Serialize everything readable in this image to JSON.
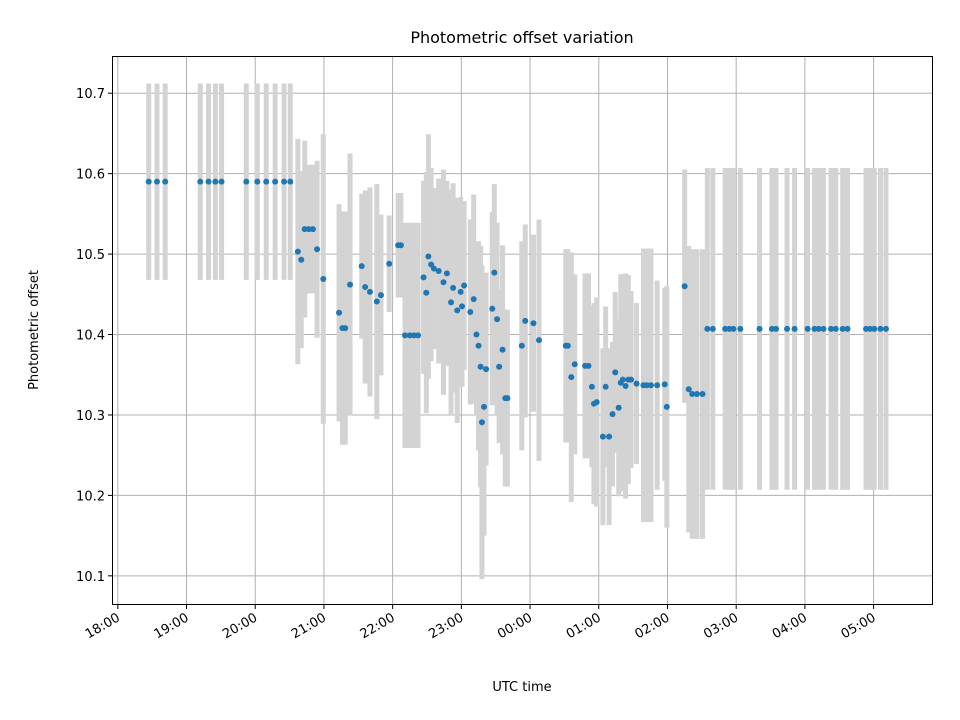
{
  "chart_data": {
    "type": "scatter",
    "title": "Photometric offset variation",
    "xlabel": "UTC time",
    "ylabel": "Photometric offset",
    "xlim_hours": [
      17.93,
      29.85
    ],
    "ylim": [
      10.065,
      10.745
    ],
    "grid": true,
    "colors": {
      "points": "#1f77b4",
      "errorbars": "#d3d3d3"
    },
    "x_ticks": [
      {
        "hour": 18,
        "label": "18:00"
      },
      {
        "hour": 19,
        "label": "19:00"
      },
      {
        "hour": 20,
        "label": "20:00"
      },
      {
        "hour": 21,
        "label": "21:00"
      },
      {
        "hour": 22,
        "label": "22:00"
      },
      {
        "hour": 23,
        "label": "23:00"
      },
      {
        "hour": 24,
        "label": "00:00"
      },
      {
        "hour": 25,
        "label": "01:00"
      },
      {
        "hour": 26,
        "label": "02:00"
      },
      {
        "hour": 27,
        "label": "03:00"
      },
      {
        "hour": 28,
        "label": "04:00"
      },
      {
        "hour": 29,
        "label": "05:00"
      }
    ],
    "y_ticks": [
      {
        "value": 10.1,
        "label": "10.1"
      },
      {
        "value": 10.2,
        "label": "10.2"
      },
      {
        "value": 10.3,
        "label": "10.3"
      },
      {
        "value": 10.4,
        "label": "10.4"
      },
      {
        "value": 10.5,
        "label": "10.5"
      },
      {
        "value": 10.6,
        "label": "10.6"
      },
      {
        "value": 10.7,
        "label": "10.7"
      }
    ],
    "points": [
      {
        "x": 18.45,
        "y": 10.59,
        "err": 0.122
      },
      {
        "x": 18.57,
        "y": 10.59,
        "err": 0.122
      },
      {
        "x": 18.69,
        "y": 10.59,
        "err": 0.122
      },
      {
        "x": 19.2,
        "y": 10.59,
        "err": 0.122
      },
      {
        "x": 19.32,
        "y": 10.59,
        "err": 0.122
      },
      {
        "x": 19.42,
        "y": 10.59,
        "err": 0.122
      },
      {
        "x": 19.51,
        "y": 10.59,
        "err": 0.122
      },
      {
        "x": 19.87,
        "y": 10.59,
        "err": 0.122
      },
      {
        "x": 20.03,
        "y": 10.59,
        "err": 0.122
      },
      {
        "x": 20.16,
        "y": 10.59,
        "err": 0.122
      },
      {
        "x": 20.29,
        "y": 10.59,
        "err": 0.122
      },
      {
        "x": 20.42,
        "y": 10.59,
        "err": 0.122
      },
      {
        "x": 20.51,
        "y": 10.59,
        "err": 0.122
      },
      {
        "x": 20.62,
        "y": 10.503,
        "err": 0.14
      },
      {
        "x": 20.67,
        "y": 10.493,
        "err": 0.11
      },
      {
        "x": 20.72,
        "y": 10.531,
        "err": 0.11
      },
      {
        "x": 20.78,
        "y": 10.531,
        "err": 0.08
      },
      {
        "x": 20.84,
        "y": 10.531,
        "err": 0.08
      },
      {
        "x": 20.9,
        "y": 10.506,
        "err": 0.11
      },
      {
        "x": 20.99,
        "y": 10.469,
        "err": 0.18
      },
      {
        "x": 21.22,
        "y": 10.427,
        "err": 0.135
      },
      {
        "x": 21.27,
        "y": 10.408,
        "err": 0.145
      },
      {
        "x": 21.31,
        "y": 10.408,
        "err": 0.145
      },
      {
        "x": 21.38,
        "y": 10.462,
        "err": 0.163
      },
      {
        "x": 21.55,
        "y": 10.485,
        "err": 0.09
      },
      {
        "x": 21.6,
        "y": 10.459,
        "err": 0.12
      },
      {
        "x": 21.67,
        "y": 10.453,
        "err": 0.13
      },
      {
        "x": 21.77,
        "y": 10.441,
        "err": 0.146
      },
      {
        "x": 21.83,
        "y": 10.449,
        "err": 0.1
      },
      {
        "x": 21.95,
        "y": 10.488,
        "err": 0.06
      },
      {
        "x": 22.08,
        "y": 10.511,
        "err": 0.065
      },
      {
        "x": 22.12,
        "y": 10.511,
        "err": 0.065
      },
      {
        "x": 22.18,
        "y": 10.399,
        "err": 0.14
      },
      {
        "x": 22.25,
        "y": 10.399,
        "err": 0.14
      },
      {
        "x": 22.31,
        "y": 10.399,
        "err": 0.14
      },
      {
        "x": 22.37,
        "y": 10.399,
        "err": 0.14
      },
      {
        "x": 22.45,
        "y": 10.471,
        "err": 0.12
      },
      {
        "x": 22.49,
        "y": 10.452,
        "err": 0.15
      },
      {
        "x": 22.52,
        "y": 10.497,
        "err": 0.152
      },
      {
        "x": 22.56,
        "y": 10.487,
        "err": 0.12
      },
      {
        "x": 22.6,
        "y": 10.482,
        "err": 0.1
      },
      {
        "x": 22.67,
        "y": 10.479,
        "err": 0.115
      },
      {
        "x": 22.74,
        "y": 10.465,
        "err": 0.14
      },
      {
        "x": 22.79,
        "y": 10.476,
        "err": 0.115
      },
      {
        "x": 22.85,
        "y": 10.44,
        "err": 0.14
      },
      {
        "x": 22.88,
        "y": 10.458,
        "err": 0.13
      },
      {
        "x": 22.94,
        "y": 10.43,
        "err": 0.14
      },
      {
        "x": 22.99,
        "y": 10.453,
        "err": 0.118
      },
      {
        "x": 23.01,
        "y": 10.435,
        "err": 0.1
      },
      {
        "x": 23.04,
        "y": 10.461,
        "err": 0.105
      },
      {
        "x": 23.13,
        "y": 10.428,
        "err": 0.115
      },
      {
        "x": 23.18,
        "y": 10.444,
        "err": 0.13
      },
      {
        "x": 23.22,
        "y": 10.4,
        "err": 0.1
      },
      {
        "x": 23.25,
        "y": 10.386,
        "err": 0.13
      },
      {
        "x": 23.28,
        "y": 10.36,
        "err": 0.15
      },
      {
        "x": 23.3,
        "y": 10.291,
        "err": 0.195
      },
      {
        "x": 23.33,
        "y": 10.31,
        "err": 0.16
      },
      {
        "x": 23.36,
        "y": 10.357,
        "err": 0.12
      },
      {
        "x": 23.45,
        "y": 10.432,
        "err": 0.12
      },
      {
        "x": 23.48,
        "y": 10.477,
        "err": 0.11
      },
      {
        "x": 23.52,
        "y": 10.419,
        "err": 0.12
      },
      {
        "x": 23.55,
        "y": 10.36,
        "err": 0.095
      },
      {
        "x": 23.6,
        "y": 10.381,
        "err": 0.13
      },
      {
        "x": 23.64,
        "y": 10.321,
        "err": 0.11
      },
      {
        "x": 23.67,
        "y": 10.321,
        "err": 0.11
      },
      {
        "x": 23.88,
        "y": 10.386,
        "err": 0.13
      },
      {
        "x": 23.93,
        "y": 10.417,
        "err": 0.12
      },
      {
        "x": 24.05,
        "y": 10.414,
        "err": 0.11
      },
      {
        "x": 24.13,
        "y": 10.393,
        "err": 0.15
      },
      {
        "x": 24.52,
        "y": 10.386,
        "err": 0.12
      },
      {
        "x": 24.55,
        "y": 10.386,
        "err": 0.12
      },
      {
        "x": 24.6,
        "y": 10.347,
        "err": 0.155
      },
      {
        "x": 24.65,
        "y": 10.363,
        "err": 0.112
      },
      {
        "x": 24.8,
        "y": 10.361,
        "err": 0.115
      },
      {
        "x": 24.85,
        "y": 10.361,
        "err": 0.115
      },
      {
        "x": 24.9,
        "y": 10.335,
        "err": 0.1
      },
      {
        "x": 24.93,
        "y": 10.314,
        "err": 0.125
      },
      {
        "x": 24.97,
        "y": 10.316,
        "err": 0.13
      },
      {
        "x": 25.06,
        "y": 10.273,
        "err": 0.11
      },
      {
        "x": 25.1,
        "y": 10.335,
        "err": 0.1
      },
      {
        "x": 25.15,
        "y": 10.273,
        "err": 0.11
      },
      {
        "x": 25.2,
        "y": 10.301,
        "err": 0.09
      },
      {
        "x": 25.24,
        "y": 10.353,
        "err": 0.1
      },
      {
        "x": 25.29,
        "y": 10.309,
        "err": 0.11
      },
      {
        "x": 25.32,
        "y": 10.34,
        "err": 0.135
      },
      {
        "x": 25.35,
        "y": 10.344,
        "err": 0.1
      },
      {
        "x": 25.39,
        "y": 10.336,
        "err": 0.14
      },
      {
        "x": 25.43,
        "y": 10.344,
        "err": 0.13
      },
      {
        "x": 25.47,
        "y": 10.344,
        "err": 0.11
      },
      {
        "x": 25.55,
        "y": 10.339,
        "err": 0.1
      },
      {
        "x": 25.65,
        "y": 10.337,
        "err": 0.17
      },
      {
        "x": 25.7,
        "y": 10.337,
        "err": 0.17
      },
      {
        "x": 25.76,
        "y": 10.337,
        "err": 0.17
      },
      {
        "x": 25.85,
        "y": 10.337,
        "err": 0.13
      },
      {
        "x": 25.96,
        "y": 10.338,
        "err": 0.12
      },
      {
        "x": 25.99,
        "y": 10.31,
        "err": 0.15
      },
      {
        "x": 26.25,
        "y": 10.46,
        "err": 0.145
      },
      {
        "x": 26.31,
        "y": 10.332,
        "err": 0.178
      },
      {
        "x": 26.36,
        "y": 10.326,
        "err": 0.18
      },
      {
        "x": 26.43,
        "y": 10.326,
        "err": 0.18
      },
      {
        "x": 26.51,
        "y": 10.326,
        "err": 0.18
      },
      {
        "x": 26.58,
        "y": 10.407,
        "err": 0.2
      },
      {
        "x": 26.66,
        "y": 10.407,
        "err": 0.2
      },
      {
        "x": 26.84,
        "y": 10.407,
        "err": 0.2
      },
      {
        "x": 26.9,
        "y": 10.407,
        "err": 0.2
      },
      {
        "x": 26.96,
        "y": 10.407,
        "err": 0.2
      },
      {
        "x": 27.06,
        "y": 10.407,
        "err": 0.2
      },
      {
        "x": 27.34,
        "y": 10.407,
        "err": 0.2
      },
      {
        "x": 27.52,
        "y": 10.407,
        "err": 0.2
      },
      {
        "x": 27.58,
        "y": 10.407,
        "err": 0.2
      },
      {
        "x": 27.74,
        "y": 10.407,
        "err": 0.2
      },
      {
        "x": 27.85,
        "y": 10.407,
        "err": 0.2
      },
      {
        "x": 28.04,
        "y": 10.407,
        "err": 0.2
      },
      {
        "x": 28.14,
        "y": 10.407,
        "err": 0.2
      },
      {
        "x": 28.2,
        "y": 10.407,
        "err": 0.2
      },
      {
        "x": 28.27,
        "y": 10.407,
        "err": 0.2
      },
      {
        "x": 28.38,
        "y": 10.407,
        "err": 0.2
      },
      {
        "x": 28.45,
        "y": 10.407,
        "err": 0.2
      },
      {
        "x": 28.55,
        "y": 10.407,
        "err": 0.2
      },
      {
        "x": 28.62,
        "y": 10.407,
        "err": 0.2
      },
      {
        "x": 28.89,
        "y": 10.407,
        "err": 0.2
      },
      {
        "x": 28.95,
        "y": 10.407,
        "err": 0.2
      },
      {
        "x": 29.01,
        "y": 10.407,
        "err": 0.2
      },
      {
        "x": 29.1,
        "y": 10.407,
        "err": 0.2
      },
      {
        "x": 29.18,
        "y": 10.407,
        "err": 0.2
      }
    ]
  }
}
